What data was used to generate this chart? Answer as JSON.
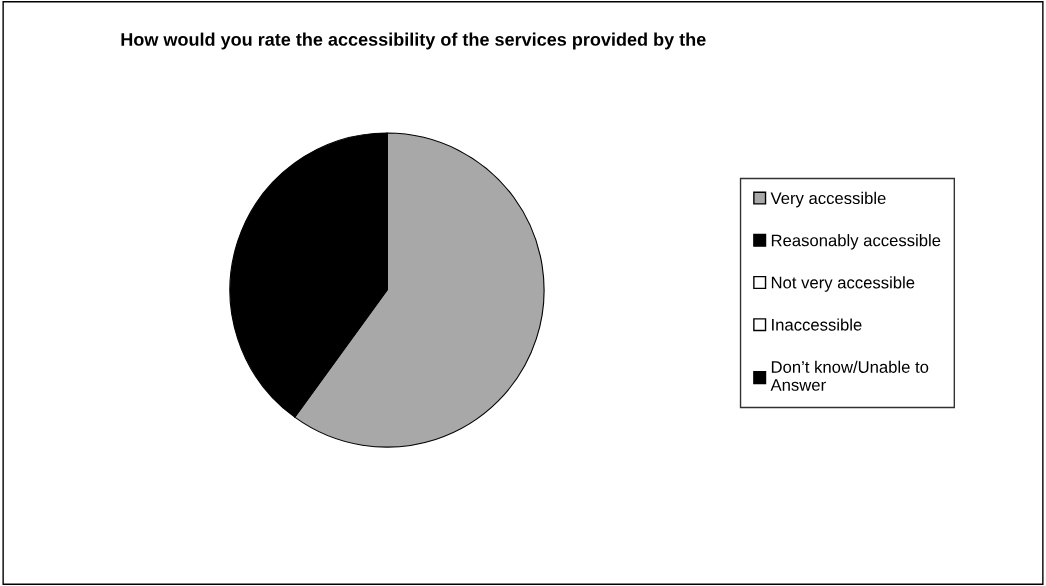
{
  "chart_data": {
    "type": "pie",
    "title": "How would you rate the accessibility of the services provided by the",
    "categories": [
      "Very accessible",
      "Reasonably accessible",
      "Not very accessible",
      "Inaccessible",
      "Don’t know/Unable to Answer"
    ],
    "values": [
      60,
      40,
      0,
      0,
      0
    ],
    "colors": [
      "#a8a8a8",
      "#000000",
      "#ffffff",
      "#ffffff",
      "#000000"
    ],
    "legend": "right"
  }
}
